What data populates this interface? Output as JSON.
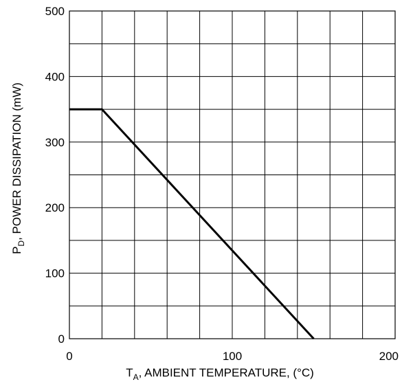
{
  "chart_data": {
    "type": "line",
    "title": "",
    "xlabel": {
      "main": "T",
      "sub": "A",
      "rest": ", AMBIENT TEMPERATURE, (°C)"
    },
    "ylabel": {
      "main": "P",
      "sub": "D",
      "rest": ", POWER DISSIPATION (mW)"
    },
    "xlim": [
      0,
      200
    ],
    "ylim": [
      0,
      500
    ],
    "x_ticks": [
      0,
      100,
      200
    ],
    "y_ticks": [
      0,
      100,
      200,
      300,
      400,
      500
    ],
    "x_tick_labels": [
      "0",
      "100",
      "200"
    ],
    "y_tick_labels": [
      "0",
      "100",
      "200",
      "300",
      "400",
      "500"
    ],
    "grid": true,
    "x_grid_step": 20,
    "y_grid_step": 50,
    "series": [
      {
        "x": [
          0,
          20,
          150
        ],
        "y": [
          350,
          350,
          0
        ]
      }
    ]
  },
  "colors": {
    "grid": "#000000",
    "line": "#000000",
    "background": "#ffffff"
  }
}
